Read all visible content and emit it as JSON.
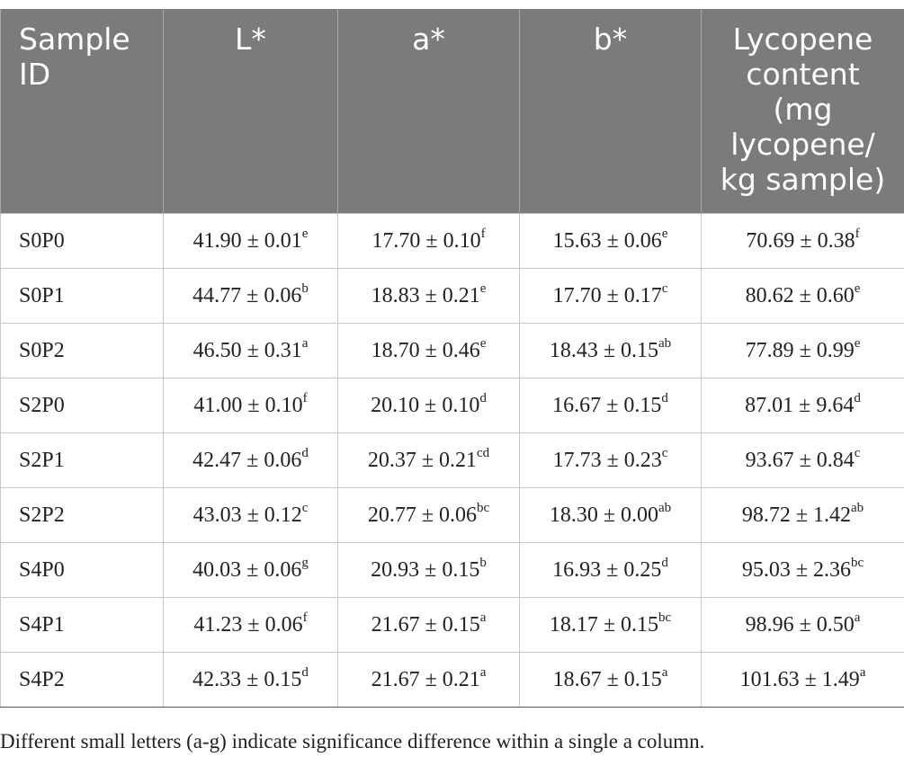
{
  "table": {
    "headers": [
      "Sample ID",
      "L*",
      "a*",
      "b*",
      "Lycopene content (mg lycopene/ kg sample)"
    ],
    "rows": [
      {
        "id": "S0P0",
        "L": "41.90 ± 0.01",
        "L_sup": "e",
        "a": "17.70 ± 0.10",
        "a_sup": "f",
        "b": "15.63 ± 0.06",
        "b_sup": "e",
        "lyc": "70.69 ± 0.38",
        "lyc_sup": "f"
      },
      {
        "id": "S0P1",
        "L": "44.77 ± 0.06",
        "L_sup": "b",
        "a": "18.83 ± 0.21",
        "a_sup": "e",
        "b": "17.70 ± 0.17",
        "b_sup": "c",
        "lyc": "80.62 ± 0.60",
        "lyc_sup": "e"
      },
      {
        "id": "S0P2",
        "L": "46.50 ± 0.31",
        "L_sup": "a",
        "a": "18.70 ± 0.46",
        "a_sup": "e",
        "b": "18.43 ± 0.15",
        "b_sup": "ab",
        "lyc": "77.89 ± 0.99",
        "lyc_sup": "e"
      },
      {
        "id": "S2P0",
        "L": "41.00 ± 0.10",
        "L_sup": "f",
        "a": "20.10 ± 0.10",
        "a_sup": "d",
        "b": "16.67 ± 0.15",
        "b_sup": "d",
        "lyc": "87.01 ± 9.64",
        "lyc_sup": "d"
      },
      {
        "id": "S2P1",
        "L": "42.47 ± 0.06",
        "L_sup": "d",
        "a": "20.37 ± 0.21",
        "a_sup": "cd",
        "b": "17.73 ± 0.23",
        "b_sup": "c",
        "lyc": "93.67 ± 0.84",
        "lyc_sup": "c"
      },
      {
        "id": "S2P2",
        "L": "43.03 ± 0.12",
        "L_sup": "c",
        "a": "20.77 ± 0.06",
        "a_sup": "bc",
        "b": "18.30 ± 0.00",
        "b_sup": "ab",
        "lyc": "98.72 ± 1.42",
        "lyc_sup": "ab"
      },
      {
        "id": "S4P0",
        "L": "40.03 ± 0.06",
        "L_sup": "g",
        "a": "20.93 ± 0.15",
        "a_sup": "b",
        "b": "16.93 ± 0.25",
        "b_sup": "d",
        "lyc": "95.03 ± 2.36",
        "lyc_sup": "bc"
      },
      {
        "id": "S4P1",
        "L": "41.23 ± 0.06",
        "L_sup": "f",
        "a": "21.67 ± 0.15",
        "a_sup": "a",
        "b": "18.17 ± 0.15",
        "b_sup": "bc",
        "lyc": "98.96 ± 0.50",
        "lyc_sup": "a"
      },
      {
        "id": "S4P2",
        "L": "42.33 ± 0.15",
        "L_sup": "d",
        "a": "21.67 ± 0.21",
        "a_sup": "a",
        "b": "18.67 ± 0.15",
        "b_sup": "a",
        "lyc": "101.63 ± 1.49",
        "lyc_sup": "a"
      }
    ],
    "footnote": "Different small letters (a-g) indicate significance difference within a single a column."
  },
  "colors": {
    "header_background": "#7b7b7b",
    "header_text": "#ffffff",
    "border": "#c8c8c8"
  }
}
